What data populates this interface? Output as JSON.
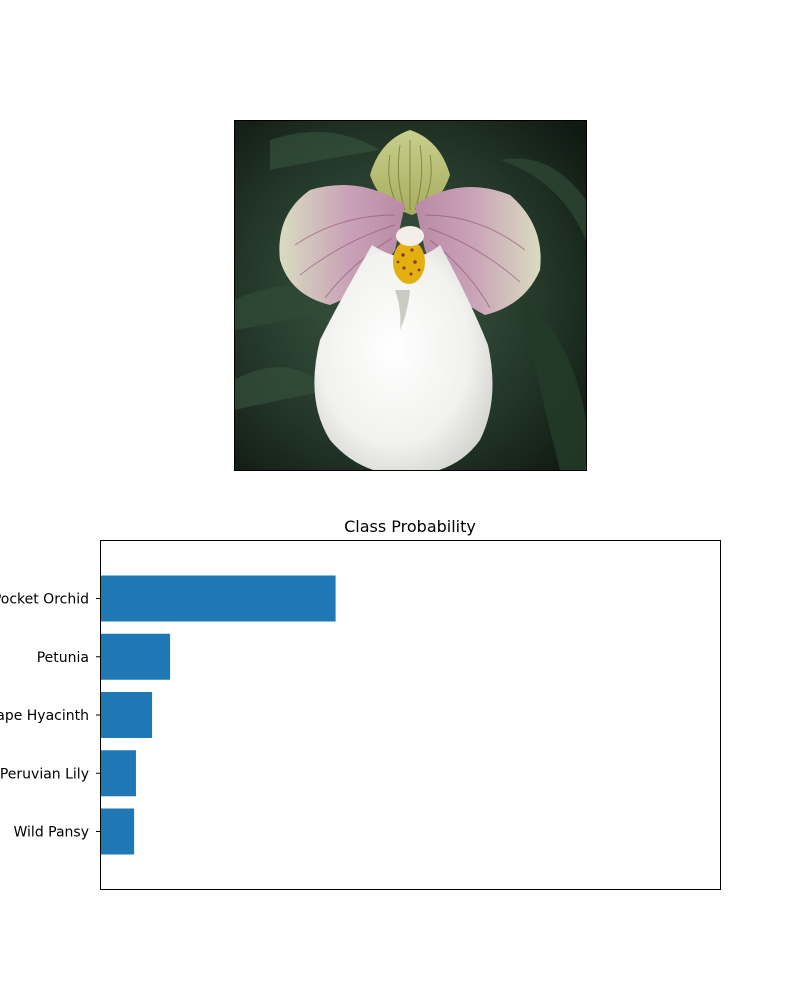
{
  "chart_data": [
    {
      "type": "image",
      "caption": ""
    },
    {
      "type": "bar",
      "orientation": "horizontal",
      "title": "Class Probability",
      "categories": [
        "Pink-Yellow Dahlia? Pocket Orchid",
        "Petunia",
        "Grape Hyacinth",
        "Peruvian Lily",
        "Wild Pansy"
      ],
      "category_labels": [
        "Pocket Orchid",
        "Petunia",
        "Grape Hyacinth",
        "Peruvian Lily",
        "Wild Pansy"
      ],
      "values": [
        0.38,
        0.113,
        0.084,
        0.058,
        0.055
      ],
      "xlim": [
        0,
        1.0
      ],
      "xticks_visible": false,
      "bar_color": "#1f77b4",
      "grid": false
    }
  ]
}
